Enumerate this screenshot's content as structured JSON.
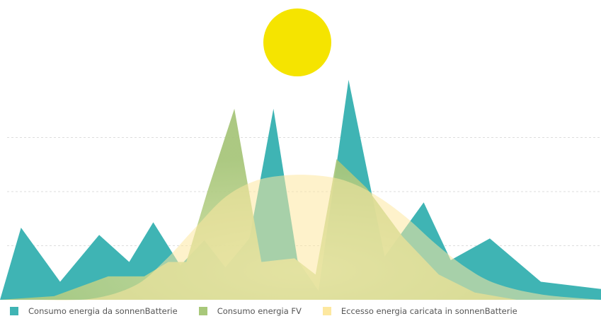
{
  "chart_data": {
    "type": "area",
    "title": "",
    "xlabel": "",
    "ylabel": "",
    "grid": true,
    "legend_position": "bottom-left",
    "sun_icon": "sun-icon",
    "colors": {
      "battery": "#3fb4b4",
      "pv": "#a8c87a",
      "excess": "#fde8a0",
      "sun": "#f5e400",
      "grid": "#dddddd"
    },
    "series": [
      {
        "key": "battery",
        "name": "Consumo energia da sonnenBatterie",
        "x": [
          0,
          7,
          20,
          33,
          43,
          51,
          60,
          68,
          75,
          83,
          91,
          99,
          106,
          116,
          128,
          141,
          150,
          163,
          180,
          200
        ],
        "y": [
          0,
          4,
          1,
          3.6,
          2.1,
          4.3,
          1.9,
          3.3,
          1.8,
          3.4,
          10.6,
          2.2,
          0.5,
          12.2,
          2.4,
          5.4,
          2.2,
          3.4,
          1.0,
          0.6
        ]
      },
      {
        "key": "pv",
        "name": "Consumo energia FV",
        "x": [
          0,
          18,
          36,
          48,
          56,
          62,
          69,
          78,
          87,
          98,
          105,
          112,
          122,
          134,
          146,
          158,
          172,
          200
        ],
        "y": [
          0,
          0.2,
          1.3,
          1.3,
          2.1,
          2.1,
          6.0,
          10.6,
          2.1,
          2.3,
          1.4,
          7.8,
          6.2,
          3.5,
          1.4,
          0.4,
          0,
          0
        ]
      },
      {
        "key": "excess",
        "name": "Eccesso energia caricata in sonnenBatterie",
        "x": [
          10,
          30,
          45,
          55,
          65,
          75,
          85,
          95,
          105,
          115,
          125,
          135,
          145,
          155,
          165,
          180,
          200
        ],
        "y": [
          0,
          0.05,
          0.8,
          2.2,
          4.0,
          5.7,
          6.6,
          6.9,
          6.9,
          6.6,
          5.8,
          4.6,
          3.1,
          1.8,
          0.9,
          0.3,
          0
        ]
      }
    ],
    "xlim": [
      0,
      200
    ],
    "ylim": [
      0,
      12
    ],
    "gridlines": [
      3,
      6,
      9
    ]
  }
}
